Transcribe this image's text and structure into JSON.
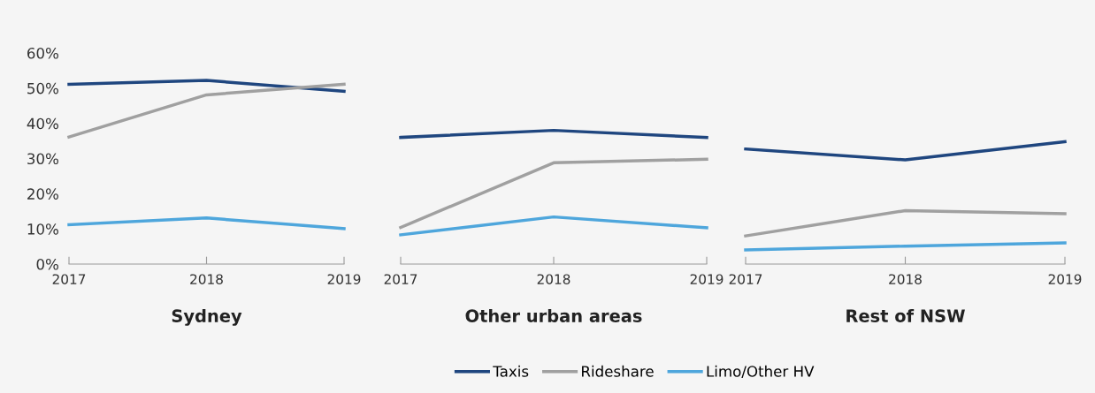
{
  "chart_data": [
    {
      "type": "line",
      "title": "Sydney",
      "categories": [
        "2017",
        "2018",
        "2019"
      ],
      "ylim": [
        0,
        60
      ],
      "yticks": [
        {
          "value": 0,
          "label": "0%"
        },
        {
          "value": 10,
          "label": "10%"
        },
        {
          "value": 20,
          "label": "20%"
        },
        {
          "value": 30,
          "label": "30%"
        },
        {
          "value": 40,
          "label": "40%"
        },
        {
          "value": 50,
          "label": "50%"
        },
        {
          "value": 60,
          "label": "60%"
        }
      ],
      "grid": false,
      "legend": "bottom",
      "series": [
        {
          "name": "Taxis",
          "color": "#1f467f",
          "values": [
            51.1,
            52.2,
            49.1
          ]
        },
        {
          "name": "Rideshare",
          "color": "#a0a0a0",
          "values": [
            36.1,
            48.1,
            51.1
          ]
        },
        {
          "name": "Limo/Other HV",
          "color": "#4ea6dc",
          "values": [
            11.2,
            13.1,
            10.1
          ]
        }
      ]
    },
    {
      "type": "line",
      "title": "Other urban areas",
      "categories": [
        "2017",
        "2018",
        "2019"
      ],
      "ylim": [
        0,
        60
      ],
      "tick_labels": "x",
      "grid": false,
      "series": [
        {
          "color": "#1f467f",
          "values": [
            36.0,
            38.0,
            36.0
          ]
        },
        {
          "color": "#a0a0a0",
          "values": [
            10.4,
            28.8,
            29.8
          ]
        },
        {
          "color": "#4ea6dc",
          "values": [
            8.3,
            13.4,
            10.3
          ]
        }
      ]
    },
    {
      "type": "line",
      "title": "Rest of NSW",
      "categories": [
        "2017",
        "2018",
        "2019"
      ],
      "ylim": [
        0,
        60
      ],
      "tick_labels": "x",
      "grid": false,
      "series": [
        {
          "color": "#1f467f",
          "values": [
            32.7,
            29.6,
            34.8
          ]
        },
        {
          "color": "#a0a0a0",
          "values": [
            8.0,
            15.2,
            14.3
          ]
        },
        {
          "color": "#4ea6dc",
          "values": [
            4.0,
            5.1,
            6.0
          ]
        }
      ]
    }
  ]
}
